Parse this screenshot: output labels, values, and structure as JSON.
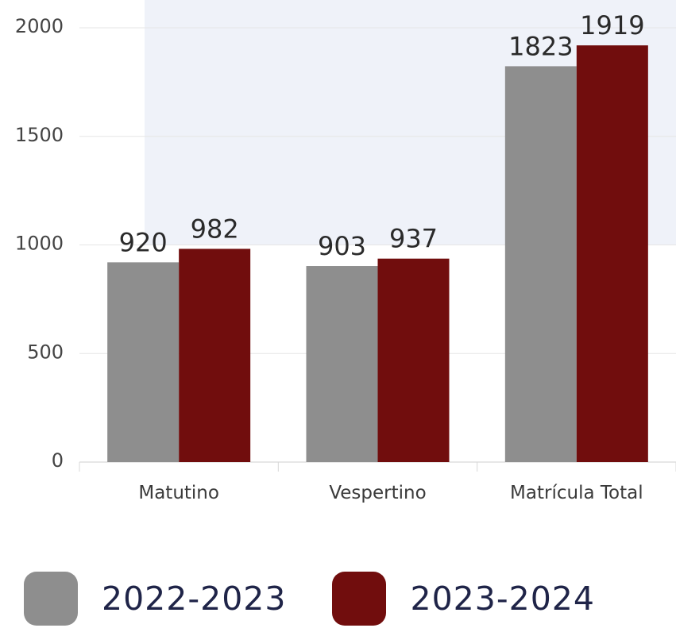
{
  "chart_data": {
    "type": "bar",
    "categories": [
      "Matutino",
      "Vespertino",
      "Matrícula Total"
    ],
    "series": [
      {
        "name": "2022-2023",
        "values": [
          920,
          903,
          1823
        ],
        "color": "#8e8e8e"
      },
      {
        "name": "2023-2024",
        "values": [
          982,
          937,
          1919
        ],
        "color": "#710d0d"
      }
    ],
    "ylim": [
      0,
      2000
    ],
    "yticks": [
      0,
      500,
      1000,
      1500,
      2000
    ],
    "grid": true,
    "legend_placement": "bottom",
    "data_labels": true,
    "title": "",
    "xlabel": "",
    "ylabel": ""
  },
  "legend": [
    {
      "label": "2022-2023",
      "color": "#8e8e8e"
    },
    {
      "label": "2023-2024",
      "color": "#710d0d"
    }
  ]
}
